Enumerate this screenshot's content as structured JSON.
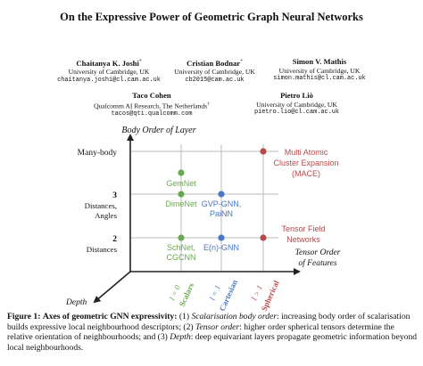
{
  "paper": {
    "title": "On the Expressive Power of Geometric Graph Neural Networks",
    "authors": [
      {
        "name": "Chaitanya K. Joshi",
        "mark": "*",
        "affiliation": "University of Cambridge, UK",
        "email": "chaitanya.joshi@cl.cam.ac.uk"
      },
      {
        "name": "Cristian Bodnar",
        "mark": "*",
        "affiliation": "University of Cambridge, UK",
        "email": "cb2015@cam.ac.uk"
      },
      {
        "name": "Simon V. Mathis",
        "mark": "",
        "affiliation": "University of Cambridge, UK",
        "email": "simon.mathis@cl.cam.ac.uk"
      },
      {
        "name": "Taco Cohen",
        "mark": "",
        "affiliation": "Qualcomm AI Research, The Netherlands",
        "affiliation_mark": "†",
        "email": "tacos@qti.qualcomm.com"
      },
      {
        "name": "Pietro Liò",
        "mark": "",
        "affiliation": "University of Cambridge, UK",
        "email": "pietro.lio@cl.cam.ac.uk"
      }
    ]
  },
  "figure": {
    "y_axis_title": "Body Order of Layer",
    "x_axis_title_line1": "Tensor Order",
    "x_axis_title_line2": "of Features",
    "depth_label": "Depth",
    "y_labels": {
      "many_body": "Many-body",
      "three": "3",
      "three_sub1": "Distances,",
      "three_sub2": "Angles",
      "two": "2",
      "two_sub": "Distances"
    },
    "x_ticks": [
      {
        "order": "l = 0",
        "kind": "Scalars",
        "color": "#6aa84f"
      },
      {
        "order": "l = 1",
        "kind": "Cartesian",
        "color": "#4a78c2"
      },
      {
        "order": "l > 1",
        "kind": "Spherical",
        "color": "#b8494a"
      }
    ],
    "models": {
      "gemnet": "GemNet",
      "dimenet": "DimeNet",
      "schnet": "SchNet,",
      "cgcnn": "CGCNN",
      "gvp": "GVP-GNN,",
      "painn": "PaiNN",
      "egnn": "E(n)-GNN",
      "mace_1": "Multi Atomic",
      "mace_2": "Cluster Expansion",
      "mace_3": "(MACE)",
      "tfn_1": "Tensor Field",
      "tfn_2": "Networks"
    },
    "colors": {
      "scalars": "#6aa84f",
      "cartesian": "#4a78c2",
      "spherical": "#b8494a",
      "axis": "#222222",
      "grid": "#bbbbbb"
    }
  },
  "caption": {
    "label": "Figure 1:",
    "heading": "Axes of geometric GNN expressivity:",
    "p1_num": "(1)",
    "p1_term": "Scalarisation body order",
    "p1_text": ": increasing body order of scalarisation builds expressive local neighbourhood descriptors; (2)",
    "p2_term": "Tensor order",
    "p2_text": ": higher order spherical tensors determine the relative orientation of neighbourhoods; and (3)",
    "p3_term": "Depth",
    "p3_text": ": deep equivariant layers propagate geometric information beyond local neighbourhoods."
  }
}
